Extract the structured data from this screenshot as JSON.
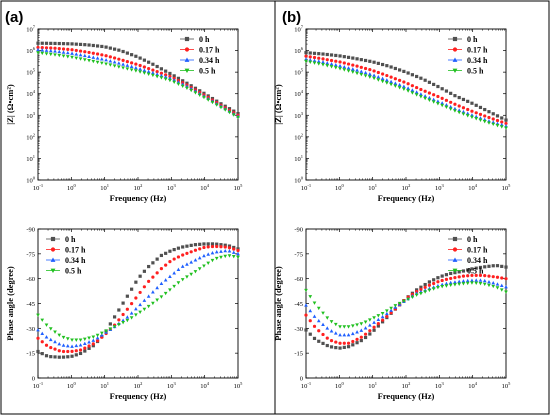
{
  "panels": [
    {
      "letter": "(a)"
    },
    {
      "letter": "(b)"
    }
  ],
  "chart_data": [
    {
      "id": "a-bode-magnitude",
      "panel": "(a)",
      "type": "scatter",
      "xlabel": "Frequency (Hz)",
      "ylabel": "|Z| (Ω•cm²)",
      "x_scale": "log",
      "y_scale": "log",
      "xlim": [
        0.1,
        100000
      ],
      "ylim": [
        1,
        10000000
      ],
      "x_ticks": [
        0.1,
        1,
        10,
        100,
        1000,
        10000,
        100000
      ],
      "y_ticks": [
        1,
        10,
        100,
        1000,
        10000,
        100000,
        1000000,
        10000000
      ],
      "legend_position": "top-right",
      "series": [
        {
          "name": "0 h",
          "marker": "square",
          "color": "#505050",
          "x": [
            0.1,
            0.3,
            1,
            3,
            10,
            30,
            100,
            300,
            1000,
            3000,
            10000,
            30000,
            100000
          ],
          "y": [
            2200000,
            2150000,
            2050000,
            1850000,
            1500000,
            1000000,
            500000,
            220000,
            80000,
            30000,
            10000,
            3500,
            1200
          ]
        },
        {
          "name": "0.17 h",
          "marker": "circle",
          "color": "#ff2020",
          "x": [
            0.1,
            0.3,
            1,
            3,
            10,
            30,
            100,
            300,
            1000,
            3000,
            10000,
            30000,
            100000
          ],
          "y": [
            1400000,
            1300000,
            1100000,
            850000,
            600000,
            380000,
            220000,
            120000,
            60000,
            25000,
            8500,
            3000,
            1000
          ]
        },
        {
          "name": "0.34 h",
          "marker": "triangle-up",
          "color": "#2060ff",
          "x": [
            0.1,
            0.3,
            1,
            3,
            10,
            30,
            100,
            300,
            1000,
            3000,
            10000,
            30000,
            100000
          ],
          "y": [
            1100000,
            950000,
            750000,
            550000,
            380000,
            250000,
            150000,
            90000,
            50000,
            22000,
            7500,
            2700,
            900
          ]
        },
        {
          "name": "0.5 h",
          "marker": "triangle-down",
          "color": "#20c020",
          "x": [
            0.1,
            0.3,
            1,
            3,
            10,
            30,
            100,
            300,
            1000,
            3000,
            10000,
            30000,
            100000
          ],
          "y": [
            800000,
            650000,
            500000,
            360000,
            250000,
            170000,
            110000,
            70000,
            40000,
            18000,
            6500,
            2400,
            800
          ]
        }
      ]
    },
    {
      "id": "a-phase-angle",
      "panel": "(a)",
      "type": "scatter",
      "xlabel": "Frequency (Hz)",
      "ylabel": "Phase angle (degree)",
      "x_scale": "log",
      "xlim": [
        0.1,
        100000
      ],
      "ylim": [
        0,
        -90
      ],
      "x_ticks": [
        0.1,
        1,
        10,
        100,
        1000,
        10000,
        100000
      ],
      "y_ticks": [
        0,
        -15,
        -30,
        -45,
        -60,
        -75,
        -90
      ],
      "legend_position": "top-left",
      "series": [
        {
          "name": "0 h",
          "marker": "square",
          "color": "#505050",
          "x": [
            0.1,
            0.2,
            0.5,
            1,
            2,
            5,
            10,
            20,
            50,
            100,
            200,
            500,
            1000,
            2000,
            5000,
            10000,
            20000,
            50000,
            100000
          ],
          "y": [
            -16,
            -13,
            -12.5,
            -13,
            -15,
            -20,
            -27,
            -37,
            -50,
            -60,
            -67,
            -74,
            -77,
            -79,
            -80.5,
            -81,
            -81,
            -80,
            -78
          ]
        },
        {
          "name": "0.17 h",
          "marker": "circle",
          "color": "#ff2020",
          "x": [
            0.1,
            0.2,
            0.5,
            1,
            2,
            5,
            10,
            20,
            50,
            100,
            200,
            500,
            1000,
            2000,
            5000,
            10000,
            20000,
            50000,
            100000
          ],
          "y": [
            -24,
            -19,
            -16,
            -16,
            -17,
            -21,
            -26,
            -32,
            -42,
            -50,
            -58,
            -66,
            -71,
            -74,
            -77,
            -79,
            -79.5,
            -79,
            -77
          ]
        },
        {
          "name": "0.34 h",
          "marker": "triangle-up",
          "color": "#2060ff",
          "x": [
            0.1,
            0.2,
            0.5,
            1,
            2,
            5,
            10,
            20,
            50,
            100,
            200,
            500,
            1000,
            2000,
            5000,
            10000,
            20000,
            50000,
            100000
          ],
          "y": [
            -29,
            -24,
            -20,
            -19,
            -20,
            -23,
            -27,
            -31,
            -37,
            -43,
            -49,
            -57,
            -62,
            -67,
            -71,
            -74,
            -76,
            -77,
            -75
          ]
        },
        {
          "name": "0.5 h",
          "marker": "triangle-down",
          "color": "#20c020",
          "x": [
            0.1,
            0.2,
            0.5,
            1,
            2,
            5,
            10,
            20,
            50,
            100,
            200,
            500,
            1000,
            2000,
            5000,
            10000,
            20000,
            50000,
            100000
          ],
          "y": [
            -38,
            -31,
            -25,
            -23,
            -23,
            -25,
            -28,
            -31,
            -35,
            -39,
            -43,
            -49,
            -54,
            -59,
            -64,
            -68,
            -72,
            -74,
            -73
          ]
        }
      ]
    },
    {
      "id": "b-bode-magnitude",
      "panel": "(b)",
      "type": "scatter",
      "xlabel": "Frequency (Hz)",
      "ylabel": "|Z| (Ω•cm²)",
      "x_scale": "log",
      "y_scale": "log",
      "xlim": [
        0.1,
        100000
      ],
      "ylim": [
        1,
        10000000
      ],
      "x_ticks": [
        0.1,
        1,
        10,
        100,
        1000,
        10000,
        100000
      ],
      "y_ticks": [
        1,
        10,
        100,
        1000,
        10000,
        100000,
        1000000,
        10000000
      ],
      "legend_position": "top-right",
      "series": [
        {
          "name": "0 h",
          "marker": "square",
          "color": "#505050",
          "x": [
            0.1,
            0.3,
            1,
            3,
            10,
            30,
            100,
            300,
            1000,
            3000,
            10000,
            30000,
            100000
          ],
          "y": [
            800000,
            700000,
            570000,
            430000,
            300000,
            190000,
            100000,
            50000,
            20000,
            8000,
            3500,
            1500,
            600
          ]
        },
        {
          "name": "0.17 h",
          "marker": "circle",
          "color": "#ff2020",
          "x": [
            0.1,
            0.3,
            1,
            3,
            10,
            30,
            100,
            300,
            1000,
            3000,
            10000,
            30000,
            100000
          ],
          "y": [
            550000,
            420000,
            300000,
            200000,
            120000,
            65000,
            32000,
            15000,
            7000,
            3200,
            1500,
            800,
            420
          ]
        },
        {
          "name": "0.34 h",
          "marker": "triangle-up",
          "color": "#2060ff",
          "x": [
            0.1,
            0.3,
            1,
            3,
            10,
            30,
            100,
            300,
            1000,
            3000,
            10000,
            30000,
            100000
          ],
          "y": [
            400000,
            300000,
            200000,
            130000,
            75000,
            40000,
            20000,
            9000,
            4200,
            2000,
            1000,
            550,
            320
          ]
        },
        {
          "name": "0.5 h",
          "marker": "triangle-down",
          "color": "#20c020",
          "x": [
            0.1,
            0.3,
            1,
            3,
            10,
            30,
            100,
            300,
            1000,
            3000,
            10000,
            30000,
            100000
          ],
          "y": [
            320000,
            230000,
            150000,
            95000,
            55000,
            30000,
            15000,
            7000,
            3300,
            1600,
            800,
            450,
            260
          ]
        }
      ]
    },
    {
      "id": "b-phase-angle",
      "panel": "(b)",
      "type": "scatter",
      "xlabel": "Frequency (Hz)",
      "ylabel": "Phase angle (degree)",
      "x_scale": "log",
      "xlim": [
        0.1,
        100000
      ],
      "ylim": [
        0,
        -90
      ],
      "x_ticks": [
        0.1,
        1,
        10,
        100,
        1000,
        10000,
        100000
      ],
      "y_ticks": [
        0,
        -15,
        -30,
        -45,
        -60,
        -75,
        -90
      ],
      "legend_position": "top-right",
      "series": [
        {
          "name": "0 h",
          "marker": "square",
          "color": "#505050",
          "x": [
            0.1,
            0.2,
            0.5,
            1,
            2,
            5,
            10,
            20,
            50,
            100,
            200,
            500,
            1000,
            2000,
            5000,
            10000,
            20000,
            50000,
            100000
          ],
          "y": [
            -29,
            -23,
            -19,
            -18,
            -19,
            -23,
            -28,
            -34,
            -42,
            -48,
            -53,
            -58,
            -61,
            -63,
            -64.5,
            -66,
            -67,
            -68,
            -67
          ]
        },
        {
          "name": "0.17 h",
          "marker": "circle",
          "color": "#ff2020",
          "x": [
            0.1,
            0.2,
            0.5,
            1,
            2,
            5,
            10,
            20,
            50,
            100,
            200,
            500,
            1000,
            2000,
            5000,
            10000,
            20000,
            50000,
            100000
          ],
          "y": [
            -38,
            -30,
            -23,
            -21,
            -21,
            -25,
            -30,
            -35,
            -42,
            -48,
            -52,
            -56,
            -58.5,
            -60,
            -61.5,
            -62,
            -62,
            -61,
            -60
          ]
        },
        {
          "name": "0.34 h",
          "marker": "triangle-up",
          "color": "#2060ff",
          "x": [
            0.1,
            0.2,
            0.5,
            1,
            2,
            5,
            10,
            20,
            50,
            100,
            200,
            500,
            1000,
            2000,
            5000,
            10000,
            20000,
            50000,
            100000
          ],
          "y": [
            -44,
            -36,
            -29,
            -26,
            -26,
            -29,
            -33,
            -37,
            -43,
            -47,
            -51,
            -54,
            -56,
            -57.5,
            -58.5,
            -59,
            -59,
            -57,
            -55
          ]
        },
        {
          "name": "0.5 h",
          "marker": "triangle-down",
          "color": "#20c020",
          "x": [
            0.1,
            0.2,
            0.5,
            1,
            2,
            5,
            10,
            20,
            50,
            100,
            200,
            500,
            1000,
            2000,
            5000,
            10000,
            20000,
            50000,
            100000
          ],
          "y": [
            -53,
            -44,
            -35,
            -31,
            -31,
            -33,
            -36,
            -39,
            -44,
            -47,
            -50,
            -53,
            -55,
            -56,
            -57,
            -57.5,
            -57,
            -55,
            -52
          ]
        }
      ]
    }
  ]
}
